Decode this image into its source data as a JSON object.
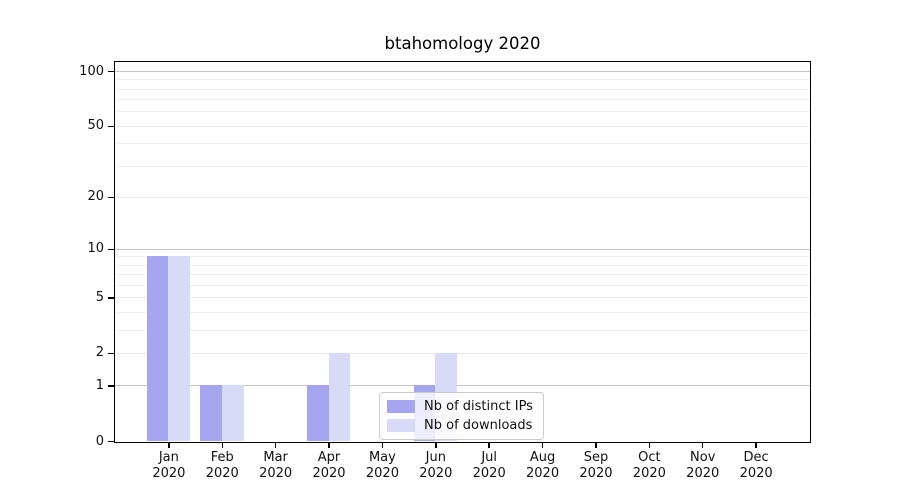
{
  "chart_data": {
    "type": "bar",
    "title": "btahomology 2020",
    "x_months": [
      "Jan",
      "Feb",
      "Mar",
      "Apr",
      "May",
      "Jun",
      "Jul",
      "Aug",
      "Sep",
      "Oct",
      "Nov",
      "Dec"
    ],
    "x_year": "2020",
    "series": [
      {
        "name": "Nb of distinct IPs",
        "color": "#a5a5f0",
        "values": [
          9,
          1,
          0,
          1,
          0,
          1,
          0,
          0,
          0,
          0,
          0,
          0
        ]
      },
      {
        "name": "Nb of downloads",
        "color": "#d9d9f8",
        "values": [
          9,
          1,
          0,
          2,
          0,
          2,
          0,
          0,
          0,
          0,
          0,
          0
        ]
      }
    ],
    "yscale": "log1p",
    "ylim": [
      0,
      112
    ],
    "y_major_ticks": [
      0,
      1,
      2,
      5,
      10,
      20,
      50,
      100
    ],
    "y_minor_ticks": [
      3,
      4,
      6,
      7,
      8,
      9,
      30,
      40,
      60,
      70,
      80,
      90
    ],
    "y_decade_gridlines": [
      1,
      10,
      100
    ],
    "grid": "horizontal",
    "legend_position": "lower center"
  }
}
